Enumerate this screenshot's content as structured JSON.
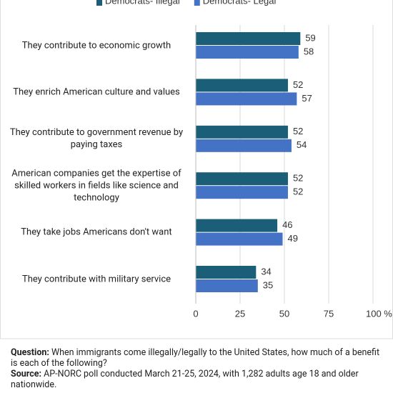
{
  "chart_data": {
    "type": "hbar",
    "categories": [
      "They contribute to economic growth",
      "They enrich American culture and values",
      "They contribute to government revenue by paying taxes",
      "American companies get the expertise of skilled workers in fields like science and technology",
      "They take jobs Americans don't want",
      "They contribute with military service"
    ],
    "series": [
      {
        "name": "Democrats- Illegal",
        "color": "#1b5e78",
        "values": [
          59,
          52,
          52,
          52,
          46,
          34
        ]
      },
      {
        "name": "Democrats- Legal",
        "color": "#4472c4",
        "values": [
          58,
          57,
          54,
          52,
          49,
          35
        ]
      }
    ],
    "xlim": [
      0,
      100
    ],
    "xticks": [
      0,
      25,
      50,
      75,
      {
        "value": 100,
        "label": "100 %"
      }
    ],
    "grid": true,
    "legend": "top"
  },
  "footer": {
    "question_label": "Question:",
    "question": "When immigrants come illegally/legally to the United States, how much of a benefit is each of the following?",
    "source_label": "Source:",
    "source": "AP-NORC poll conducted March 21-25, 2024, with 1,282 adults age 18 and older nationwide."
  }
}
